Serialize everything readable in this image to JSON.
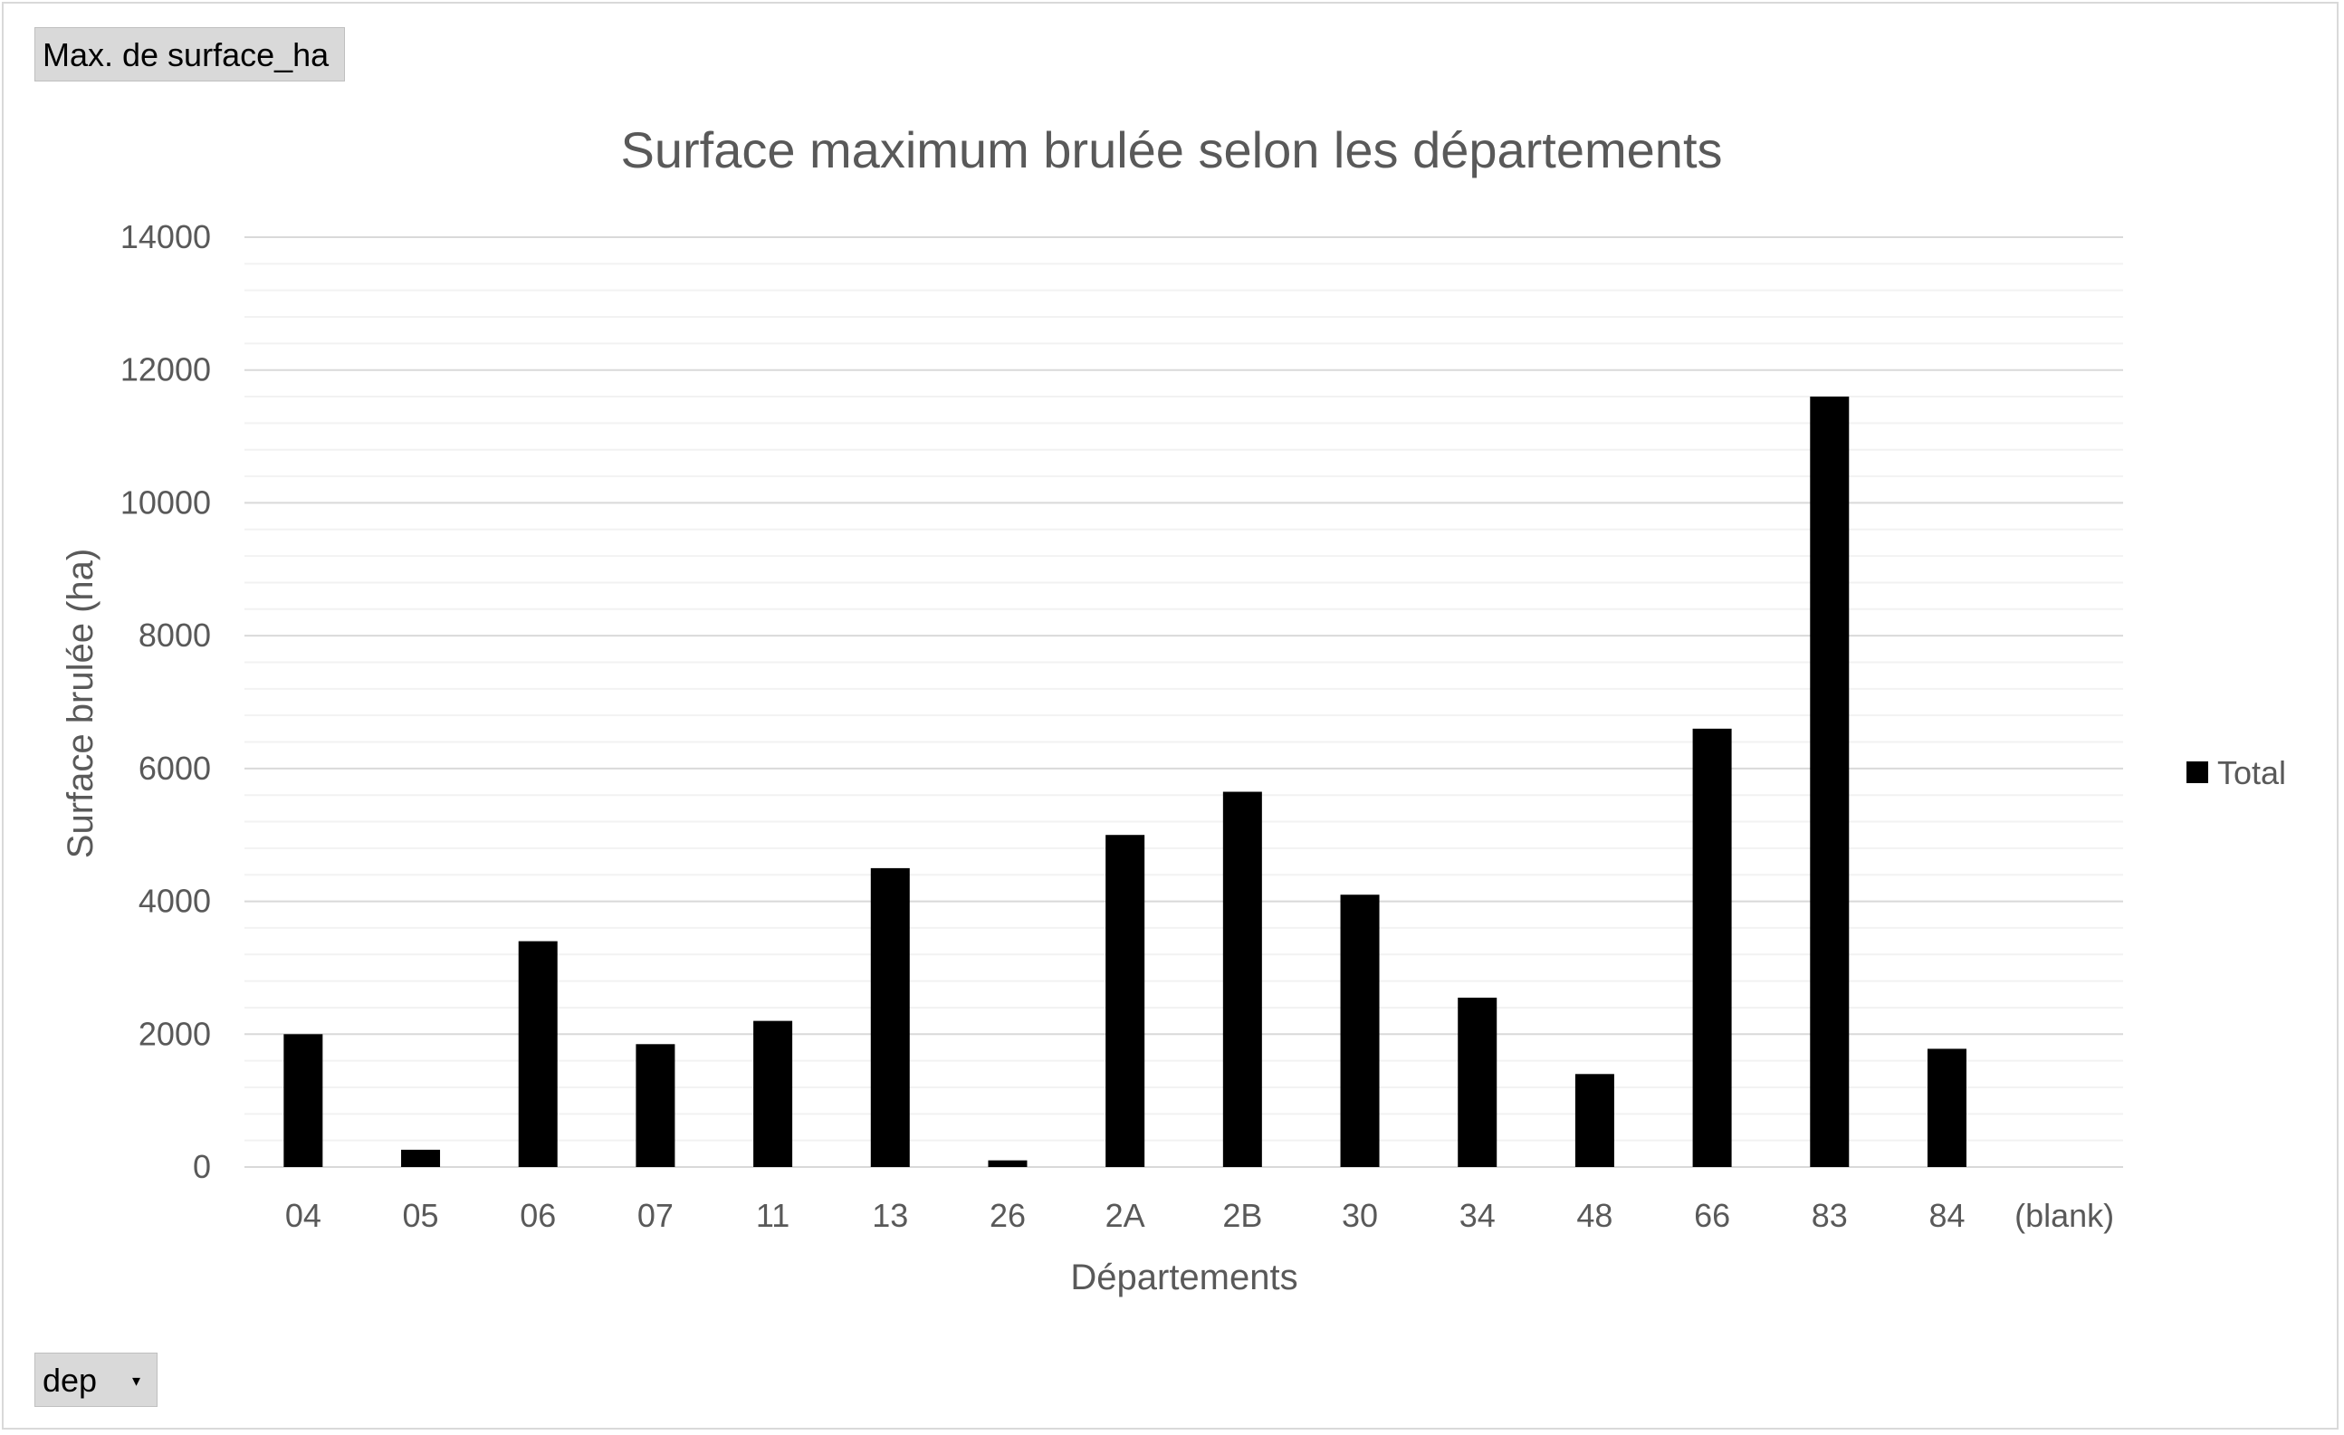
{
  "pivot": {
    "value_field_label": "Max. de surface_ha",
    "axis_field_label": "dep",
    "axis_field_dropdown_icon": "dropdown-arrow-icon"
  },
  "chart_data": {
    "type": "bar",
    "title": "Surface maximum brulée selon les départements",
    "xlabel": "Départements",
    "ylabel": "Surface brulée (ha)",
    "ylim": [
      0,
      14000
    ],
    "yticks": [
      0,
      2000,
      4000,
      6000,
      8000,
      10000,
      12000,
      14000
    ],
    "minor_gridlines": true,
    "grid": true,
    "legend_position": "right",
    "categories": [
      "04",
      "05",
      "06",
      "07",
      "11",
      "13",
      "26",
      "2A",
      "2B",
      "30",
      "34",
      "48",
      "66",
      "83",
      "84",
      "(blank)"
    ],
    "series": [
      {
        "name": "Total",
        "color": "#000000",
        "values": [
          2000,
          260,
          3400,
          1850,
          2200,
          4500,
          100,
          5000,
          5650,
          4100,
          2550,
          1400,
          6600,
          11600,
          1780,
          null
        ]
      }
    ]
  }
}
